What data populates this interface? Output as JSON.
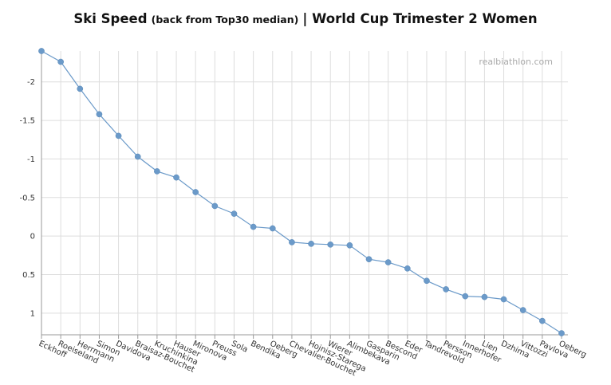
{
  "chart_data": {
    "type": "line",
    "title": "Ski Speed",
    "subtitle": "(back from Top30 median)",
    "title_suffix": "| World Cup Trimester 2  Women",
    "watermark": "realbiathlon.com",
    "y_axis": {
      "reversed": true,
      "range": [
        -2.4,
        1.28
      ],
      "ticks": [
        -2,
        -1.5,
        -1,
        -0.5,
        0,
        0.5,
        1
      ]
    },
    "grid": true,
    "categories": [
      "Eckhoff",
      "Roeiseland",
      "Herrmann",
      "Simon",
      "Davidova",
      "Braisaz-Bouchet",
      "Kruchinkina",
      "Hauser",
      "Mironova",
      "Preuss",
      "Sola",
      "Bendika",
      "Oeberg",
      "Chevalier-Bouchet",
      "Hojnisz-Starega",
      "Wierer",
      "Alimbekava",
      "Gasparin",
      "Bescond",
      "Eder",
      "Tandrevold",
      "Persson",
      "Innerhofer",
      "Lien",
      "Dzhima",
      "Vittozzi",
      "Pavlova",
      "Oeberg"
    ],
    "values": [
      -2.4,
      -2.26,
      -1.91,
      -1.58,
      -1.3,
      -1.03,
      -0.84,
      -0.76,
      -0.57,
      -0.39,
      -0.29,
      -0.12,
      -0.1,
      0.08,
      0.1,
      0.11,
      0.12,
      0.3,
      0.34,
      0.42,
      0.58,
      0.69,
      0.78,
      0.79,
      0.82,
      0.96,
      1.1,
      1.26
    ],
    "color": "#6b9ac9"
  }
}
